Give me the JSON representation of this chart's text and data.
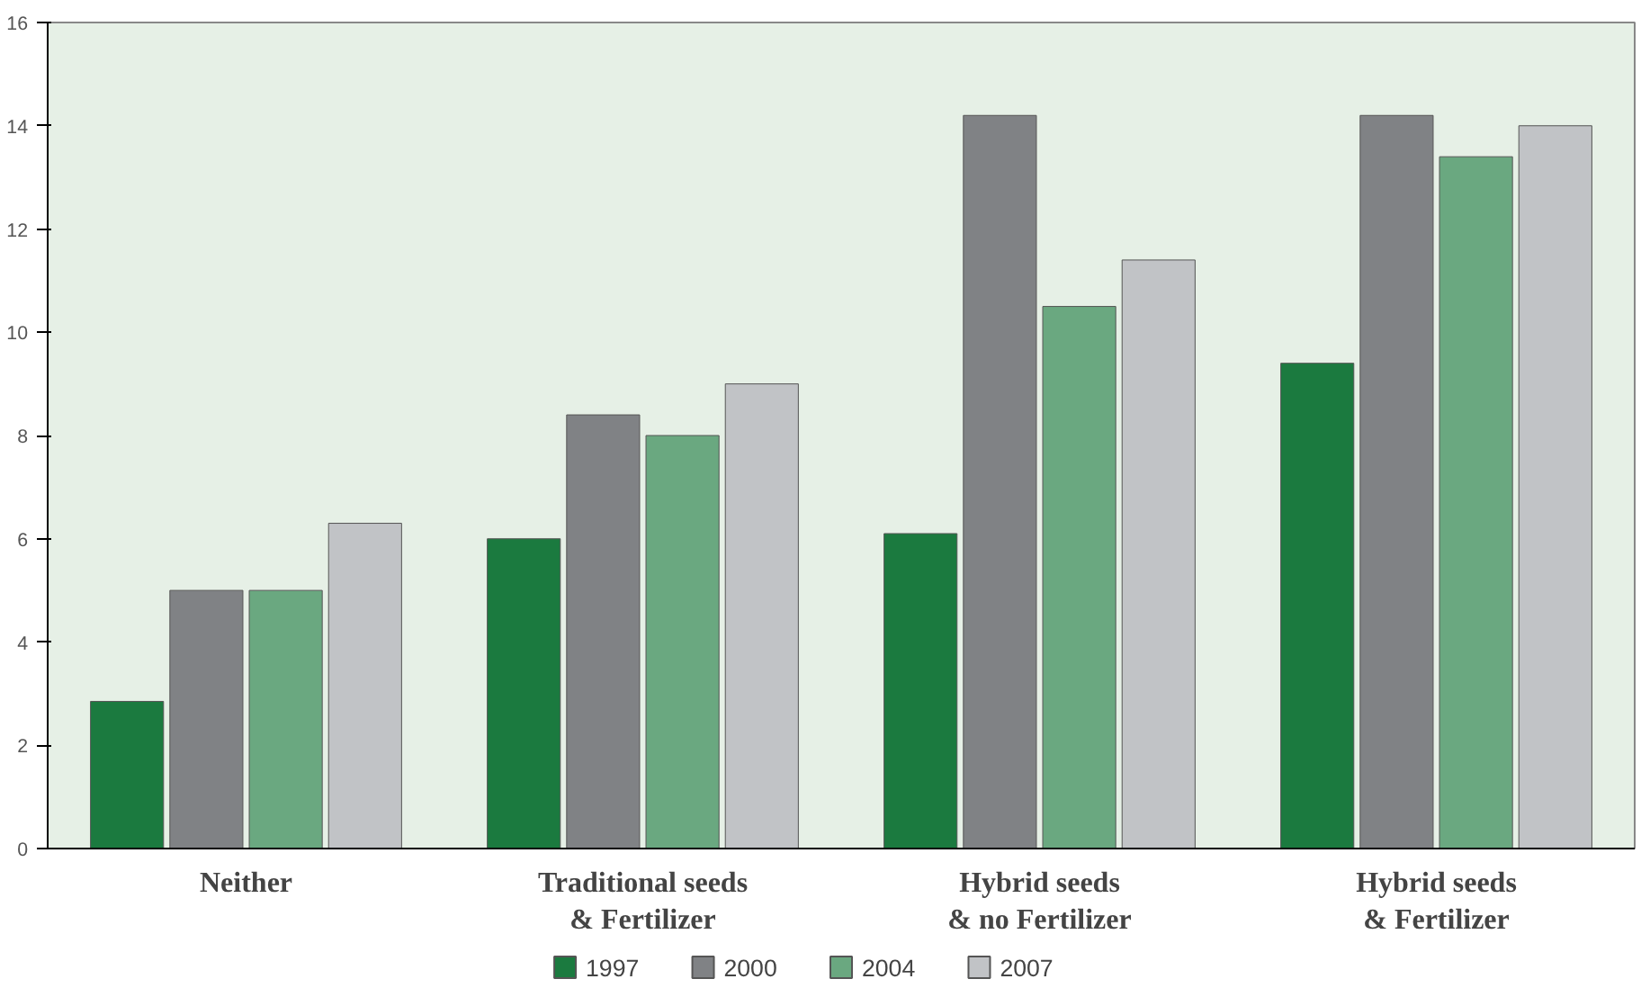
{
  "chart_data": {
    "type": "bar",
    "categories": [
      "Neither",
      "Traditional seeds\n& Fertilizer",
      "Hybrid seeds\n& no Fertilizer",
      "Hybrid seeds\n& Fertilizer"
    ],
    "series": [
      {
        "name": "1997",
        "color": "#1b7a3f",
        "values": [
          2.85,
          6.0,
          6.1,
          9.4
        ]
      },
      {
        "name": "2000",
        "color": "#808285",
        "values": [
          5.0,
          8.4,
          14.2,
          14.2
        ]
      },
      {
        "name": "2004",
        "color": "#6aa880",
        "values": [
          5.0,
          8.0,
          10.5,
          13.4
        ]
      },
      {
        "name": "2007",
        "color": "#c1c3c6",
        "values": [
          6.3,
          9.0,
          11.4,
          14.0
        ]
      }
    ],
    "ylim": [
      0,
      16
    ],
    "yticks": [
      0,
      2,
      4,
      6,
      8,
      10,
      12,
      14,
      16
    ],
    "grid": false,
    "legend": "bottom"
  }
}
